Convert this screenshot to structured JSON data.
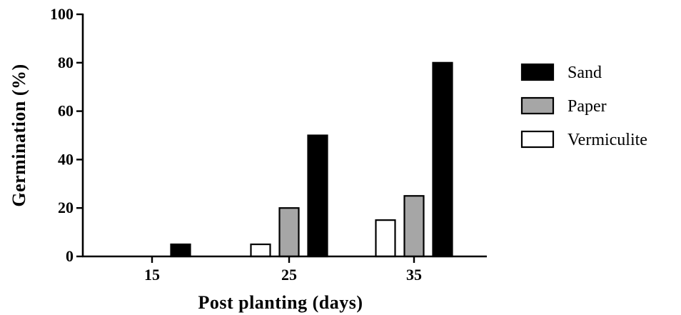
{
  "chart_data": {
    "type": "bar",
    "title": "",
    "xlabel": "Post planting (days)",
    "ylabel": "Germination (%)",
    "ylim": [
      0,
      100
    ],
    "yticks": [
      "0",
      "20",
      "40",
      "60",
      "80",
      "100"
    ],
    "categories": [
      "15",
      "25",
      "35"
    ],
    "series": [
      {
        "name": "Vermiculite",
        "values": [
          0,
          5,
          15
        ],
        "color": "#ffffff"
      },
      {
        "name": "Paper",
        "values": [
          0,
          20,
          25
        ],
        "color": "#a6a6a6"
      },
      {
        "name": "Sand",
        "values": [
          5,
          50,
          80
        ],
        "color": "#000000"
      }
    ],
    "legend_order": [
      "Sand",
      "Paper",
      "Vermiculite"
    ],
    "legend_position": "right",
    "grid": false
  }
}
